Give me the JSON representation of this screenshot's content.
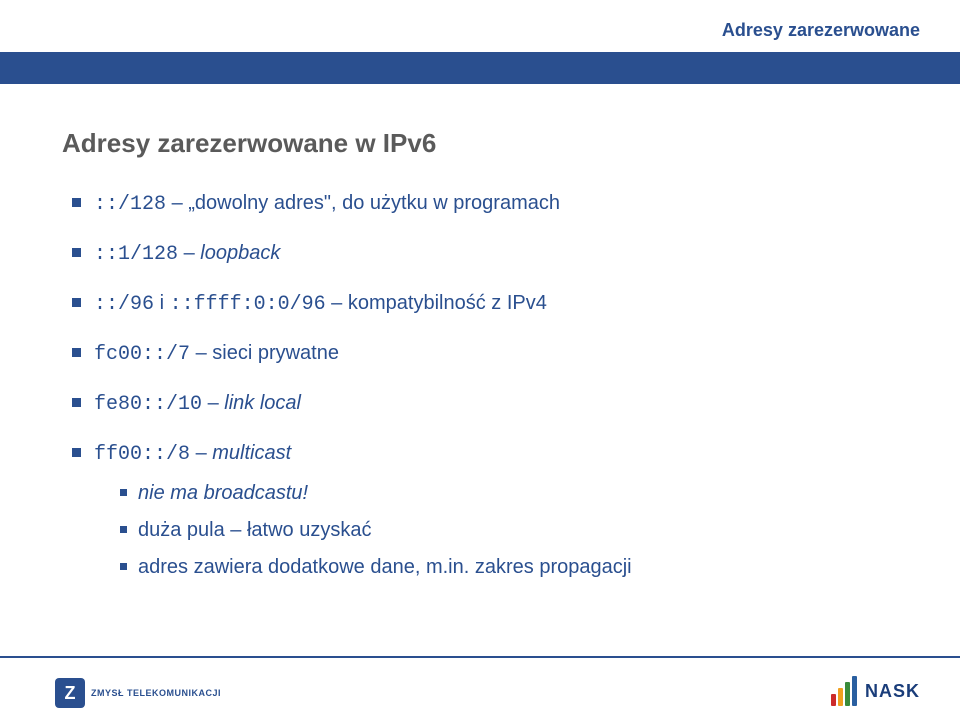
{
  "colors": {
    "accent": "#2a4f8f",
    "heading_gray": "#5a5a5a",
    "background": "#ffffff",
    "nask_logo": "#1a3d7a",
    "nask_bars": [
      "#cc2b2b",
      "#f0a020",
      "#3a8b3a",
      "#2a5fa0"
    ]
  },
  "typography": {
    "body_font": "Verdana",
    "mono_font": "Courier New",
    "title_fontsize": 26,
    "bullet_fontsize": 20,
    "header_fontsize": 18
  },
  "header": {
    "title": "Adresy zarezerwowane"
  },
  "main": {
    "title": "Adresy zarezerwowane w IPv6",
    "items": [
      {
        "code": "::/128",
        "sep": " – ",
        "desc": "„dowolny adres\", do użytku w programach",
        "italic": false
      },
      {
        "code": "::1/128",
        "sep": " – ",
        "desc": "loopback",
        "italic": true
      },
      {
        "code": "::/96",
        "mid": " i ",
        "code2": "::ffff:0:0/96",
        "sep": " – ",
        "desc": "kompatybilność z IPv4",
        "italic": false
      },
      {
        "code": "fc00::/7",
        "sep": " – ",
        "desc": "sieci prywatne",
        "italic": false
      },
      {
        "code": "fe80::/10",
        "sep": " – ",
        "desc": "link local",
        "italic": true
      },
      {
        "code": "ff00::/8",
        "sep": " – ",
        "desc": "multicast",
        "italic": true,
        "sub": [
          "nie ma broadcastu!",
          "duża pula – łatwo uzyskać",
          "adres zawiera dodatkowe dane, m.in. zakres propagacji"
        ]
      }
    ]
  },
  "footer": {
    "left_brand_icon": "Z",
    "left_brand": "ZMYSŁ TELEKOMUNIKACJI",
    "right_brand": "NASK",
    "nask_bar_heights": [
      12,
      18,
      24,
      30
    ]
  }
}
